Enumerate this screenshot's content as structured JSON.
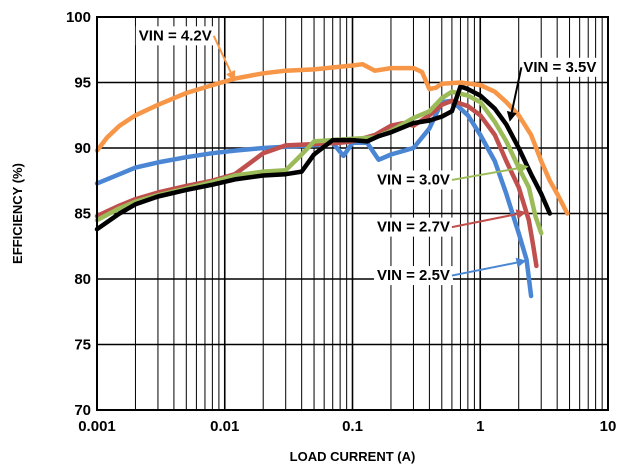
{
  "chart_data": {
    "type": "line",
    "title": "",
    "xlabel": "LOAD CURRENT (A)",
    "ylabel": "EFFICIENCY (%)",
    "xscale": "log",
    "xlim": [
      0.001,
      10
    ],
    "ylim": [
      70,
      100
    ],
    "grid": true,
    "x_ticks": [
      {
        "value": 0.001,
        "label": "0.001"
      },
      {
        "value": 0.01,
        "label": "0.01"
      },
      {
        "value": 0.1,
        "label": "0.1"
      },
      {
        "value": 1,
        "label": "1"
      },
      {
        "value": 10,
        "label": "10"
      }
    ],
    "y_ticks": [
      {
        "value": 70,
        "label": "70"
      },
      {
        "value": 75,
        "label": "75"
      },
      {
        "value": 80,
        "label": "80"
      },
      {
        "value": 85,
        "label": "85"
      },
      {
        "value": 90,
        "label": "90"
      },
      {
        "value": 95,
        "label": "95"
      },
      {
        "value": 100,
        "label": "100"
      }
    ],
    "series": [
      {
        "name": "VIN = 2.5V",
        "color": "#4a86d4",
        "label_x": 0.3,
        "label_y": 80.3,
        "arrow_x": 2.3,
        "arrow_y": 81.4,
        "points": [
          [
            0.001,
            87.3
          ],
          [
            0.0015,
            88.0
          ],
          [
            0.002,
            88.5
          ],
          [
            0.003,
            88.9
          ],
          [
            0.005,
            89.3
          ],
          [
            0.008,
            89.6
          ],
          [
            0.012,
            89.8
          ],
          [
            0.02,
            90.0
          ],
          [
            0.03,
            90.1
          ],
          [
            0.05,
            90.2
          ],
          [
            0.07,
            90.4
          ],
          [
            0.085,
            89.4
          ],
          [
            0.1,
            90.4
          ],
          [
            0.13,
            90.4
          ],
          [
            0.16,
            89.1
          ],
          [
            0.2,
            89.5
          ],
          [
            0.3,
            90.0
          ],
          [
            0.4,
            91.5
          ],
          [
            0.5,
            93.5
          ],
          [
            0.6,
            93.6
          ],
          [
            0.8,
            92.5
          ],
          [
            1.0,
            91.0
          ],
          [
            1.3,
            89.0
          ],
          [
            1.6,
            86.5
          ],
          [
            2.0,
            83.5
          ],
          [
            2.3,
            81.5
          ],
          [
            2.5,
            78.7
          ]
        ]
      },
      {
        "name": "VIN = 2.7V",
        "color": "#c0504d",
        "label_x": 0.3,
        "label_y": 84.0,
        "arrow_x": 2.3,
        "arrow_y": 85.1,
        "points": [
          [
            0.001,
            84.8
          ],
          [
            0.0015,
            85.6
          ],
          [
            0.002,
            86.1
          ],
          [
            0.003,
            86.6
          ],
          [
            0.005,
            87.1
          ],
          [
            0.008,
            87.5
          ],
          [
            0.012,
            88.0
          ],
          [
            0.02,
            89.6
          ],
          [
            0.03,
            90.2
          ],
          [
            0.05,
            90.3
          ],
          [
            0.08,
            90.4
          ],
          [
            0.1,
            90.5
          ],
          [
            0.15,
            91.0
          ],
          [
            0.2,
            91.7
          ],
          [
            0.25,
            91.9
          ],
          [
            0.3,
            91.7
          ],
          [
            0.4,
            92.5
          ],
          [
            0.5,
            93.3
          ],
          [
            0.6,
            93.6
          ],
          [
            0.8,
            93.2
          ],
          [
            1.0,
            92.5
          ],
          [
            1.3,
            91.0
          ],
          [
            1.6,
            89.0
          ],
          [
            2.0,
            87.0
          ],
          [
            2.4,
            84.5
          ],
          [
            2.6,
            82.5
          ],
          [
            2.75,
            81.0
          ]
        ]
      },
      {
        "name": "VIN = 3.0V",
        "color": "#9bbb59",
        "label_x": 0.3,
        "label_y": 87.6,
        "arrow_x": 2.4,
        "arrow_y": 88.6,
        "points": [
          [
            0.001,
            84.5
          ],
          [
            0.0015,
            85.4
          ],
          [
            0.002,
            85.9
          ],
          [
            0.003,
            86.4
          ],
          [
            0.005,
            86.9
          ],
          [
            0.008,
            87.4
          ],
          [
            0.012,
            87.9
          ],
          [
            0.02,
            88.2
          ],
          [
            0.03,
            88.3
          ],
          [
            0.04,
            89.5
          ],
          [
            0.05,
            90.5
          ],
          [
            0.07,
            90.6
          ],
          [
            0.1,
            90.7
          ],
          [
            0.15,
            90.8
          ],
          [
            0.2,
            91.3
          ],
          [
            0.3,
            92.3
          ],
          [
            0.4,
            92.8
          ],
          [
            0.5,
            93.8
          ],
          [
            0.6,
            94.3
          ],
          [
            0.8,
            94.0
          ],
          [
            1.0,
            93.5
          ],
          [
            1.3,
            92.0
          ],
          [
            1.6,
            90.5
          ],
          [
            2.0,
            88.5
          ],
          [
            2.4,
            87.0
          ],
          [
            2.7,
            84.8
          ],
          [
            3.0,
            83.5
          ]
        ]
      },
      {
        "name": "VIN = 3.5V",
        "color": "#000000",
        "label_x": 4.2,
        "label_y": 96.2,
        "arrow_x": 1.7,
        "arrow_y": 92.0,
        "points": [
          [
            0.001,
            83.8
          ],
          [
            0.0015,
            85.0
          ],
          [
            0.002,
            85.7
          ],
          [
            0.003,
            86.3
          ],
          [
            0.005,
            86.8
          ],
          [
            0.008,
            87.2
          ],
          [
            0.012,
            87.6
          ],
          [
            0.02,
            87.9
          ],
          [
            0.03,
            88.0
          ],
          [
            0.04,
            88.2
          ],
          [
            0.05,
            89.5
          ],
          [
            0.07,
            90.6
          ],
          [
            0.1,
            90.6
          ],
          [
            0.13,
            90.5
          ],
          [
            0.16,
            90.9
          ],
          [
            0.2,
            91.2
          ],
          [
            0.3,
            91.9
          ],
          [
            0.4,
            92.1
          ],
          [
            0.5,
            92.4
          ],
          [
            0.6,
            92.8
          ],
          [
            0.7,
            94.7
          ],
          [
            0.8,
            94.5
          ],
          [
            1.0,
            94.0
          ],
          [
            1.3,
            93.0
          ],
          [
            1.6,
            91.8
          ],
          [
            2.0,
            90.0
          ],
          [
            2.5,
            88.0
          ],
          [
            3.0,
            86.5
          ],
          [
            3.5,
            85.0
          ]
        ]
      },
      {
        "name": "VIN = 4.2V",
        "color": "#f79646",
        "label_x": 0.0041,
        "label_y": 98.6,
        "arrow_x": 0.012,
        "arrow_y": 95.1,
        "points": [
          [
            0.001,
            89.8
          ],
          [
            0.0012,
            90.8
          ],
          [
            0.0015,
            91.7
          ],
          [
            0.002,
            92.5
          ],
          [
            0.003,
            93.3
          ],
          [
            0.005,
            94.2
          ],
          [
            0.008,
            94.8
          ],
          [
            0.012,
            95.3
          ],
          [
            0.02,
            95.7
          ],
          [
            0.03,
            95.9
          ],
          [
            0.05,
            96.0
          ],
          [
            0.08,
            96.2
          ],
          [
            0.1,
            96.3
          ],
          [
            0.12,
            96.4
          ],
          [
            0.15,
            95.9
          ],
          [
            0.2,
            96.1
          ],
          [
            0.3,
            96.1
          ],
          [
            0.35,
            95.8
          ],
          [
            0.4,
            94.5
          ],
          [
            0.45,
            94.6
          ],
          [
            0.5,
            94.9
          ],
          [
            0.7,
            95.0
          ],
          [
            1.0,
            94.8
          ],
          [
            1.3,
            94.3
          ],
          [
            1.6,
            93.5
          ],
          [
            2.0,
            92.5
          ],
          [
            2.5,
            91.0
          ],
          [
            3.0,
            89.0
          ],
          [
            3.5,
            87.5
          ],
          [
            4.0,
            86.5
          ],
          [
            4.8,
            85.0
          ]
        ]
      }
    ]
  }
}
